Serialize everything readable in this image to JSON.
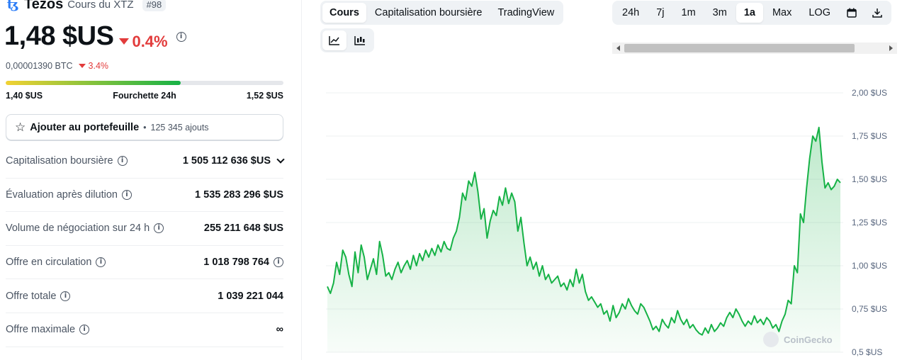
{
  "coin": {
    "name": "Tezos",
    "subtitle": "Cours du XTZ",
    "rank": "#98",
    "price": "1,48 $US",
    "change": "0.4%",
    "btc_price": "0,00001390 BTC",
    "btc_change": "3.4%"
  },
  "range": {
    "low": "1,40 $US",
    "label": "Fourchette 24h",
    "high": "1,52 $US",
    "position_fraction": 0.63
  },
  "portfolio": {
    "label": "Ajouter au portefeuille",
    "separator": "•",
    "count": "125 345 ajouts"
  },
  "stats": [
    {
      "label": "Capitalisation boursière",
      "value": "1 505 112 636 $US",
      "has_info": true,
      "has_chevron": true
    },
    {
      "label": "Évaluation après dilution",
      "value": "1 535 283 296 $US",
      "has_info": true,
      "has_chevron": false
    },
    {
      "label": "Volume de négociation sur 24 h",
      "value": "255 211 648 $US",
      "has_info": true,
      "has_chevron": false
    },
    {
      "label": "Offre en circulation",
      "value": "1 018 798 764",
      "has_info": true,
      "has_chevron": false,
      "value_info": true
    },
    {
      "label": "Offre totale",
      "value": "1 039 221 044",
      "has_info": true,
      "has_chevron": false
    },
    {
      "label": "Offre maximale",
      "value": "∞",
      "has_info": true,
      "has_chevron": false
    }
  ],
  "view_tabs": [
    {
      "label": "Cours",
      "active": true
    },
    {
      "label": "Capitalisation boursière",
      "active": false
    },
    {
      "label": "TradingView",
      "active": false
    }
  ],
  "chart_type_tabs": [
    {
      "icon": "line-chart-icon",
      "active": true
    },
    {
      "icon": "candlestick-icon",
      "active": false
    }
  ],
  "range_tabs": [
    {
      "label": "24h",
      "active": false
    },
    {
      "label": "7j",
      "active": false
    },
    {
      "label": "1m",
      "active": false
    },
    {
      "label": "3m",
      "active": false
    },
    {
      "label": "1a",
      "active": true
    },
    {
      "label": "Max",
      "active": false
    },
    {
      "label": "LOG",
      "active": false
    }
  ],
  "toolbar_icons": [
    "calendar-icon",
    "download-icon"
  ],
  "colors": {
    "accent_green": "#16b246",
    "negative_red": "#e23b3b",
    "tab_bg": "#eff2f5"
  },
  "chart_data": {
    "type": "area",
    "y_ticks": [
      "2,00 $US",
      "1,75 $US",
      "1,50 $US",
      "1,25 $US",
      "1,00 $US",
      "0,75 $US",
      "0,5 $US"
    ],
    "y_tick_values": [
      2.0,
      1.75,
      1.5,
      1.25,
      1.0,
      0.75,
      0.5
    ],
    "ylim": [
      0.5,
      2.0
    ],
    "grid": true,
    "watermark": "CoinGecko",
    "series": [
      {
        "values": [
          0.88,
          0.84,
          0.9,
          1.02,
          0.95,
          1.09,
          1.05,
          0.95,
          0.88,
          1.08,
          0.96,
          1.12,
          1.05,
          0.92,
          0.98,
          1.04,
          0.95,
          1.14,
          1.06,
          0.94,
          0.96,
          0.92,
          0.98,
          1.02,
          0.96,
          1.0,
          1.03,
          0.98,
          1.06,
          1.0,
          1.07,
          1.03,
          1.09,
          1.05,
          1.1,
          1.06,
          1.12,
          1.08,
          1.14,
          1.1,
          1.09,
          1.16,
          1.2,
          1.28,
          1.42,
          1.38,
          1.49,
          1.46,
          1.54,
          1.43,
          1.27,
          1.33,
          1.16,
          1.26,
          1.32,
          1.29,
          1.4,
          1.35,
          1.45,
          1.36,
          1.42,
          1.37,
          1.2,
          1.28,
          1.13,
          1.0,
          1.05,
          0.98,
          1.02,
          0.94,
          1.0,
          0.92,
          0.95,
          0.9,
          0.92,
          0.94,
          0.88,
          0.9,
          0.86,
          0.92,
          0.88,
          0.98,
          0.9,
          0.95,
          0.85,
          0.8,
          0.82,
          0.79,
          0.76,
          0.78,
          0.72,
          0.74,
          0.68,
          0.77,
          0.7,
          0.73,
          0.78,
          0.75,
          0.81,
          0.77,
          0.74,
          0.72,
          0.78,
          0.76,
          0.72,
          0.68,
          0.63,
          0.65,
          0.62,
          0.69,
          0.66,
          0.64,
          0.7,
          0.67,
          0.74,
          0.69,
          0.66,
          0.69,
          0.64,
          0.66,
          0.63,
          0.61,
          0.6,
          0.64,
          0.61,
          0.66,
          0.62,
          0.64,
          0.67,
          0.65,
          0.7,
          0.73,
          0.7,
          0.75,
          0.72,
          0.68,
          0.65,
          0.68,
          0.66,
          0.71,
          0.67,
          0.69,
          0.66,
          0.7,
          0.68,
          0.64,
          0.66,
          0.62,
          0.68,
          0.72,
          0.8,
          0.78,
          1.0,
          0.96,
          1.3,
          1.25,
          1.45,
          1.62,
          1.75,
          1.72,
          1.8,
          1.6,
          1.45,
          1.48,
          1.44,
          1.46,
          1.5,
          1.48
        ]
      }
    ]
  }
}
